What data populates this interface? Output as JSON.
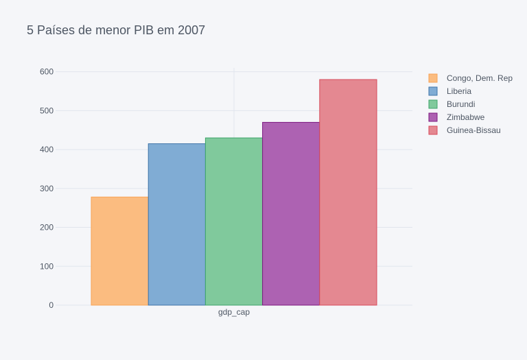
{
  "chart_data": {
    "type": "bar",
    "title": "5 Países de menor PIB em 2007",
    "categories": [
      "gdp_cap"
    ],
    "xlabel": "",
    "ylabel": "",
    "ylim": [
      0,
      610
    ],
    "yticks": [
      0,
      100,
      200,
      300,
      400,
      500,
      600
    ],
    "grid": true,
    "legend_position": "top-right",
    "series": [
      {
        "name": "Congo, Dem. Rep",
        "values": [
          278
        ],
        "color": "#fbbc80",
        "edge": "#f7a356"
      },
      {
        "name": "Liberia",
        "values": [
          415
        ],
        "color": "#80acd4",
        "edge": "#3f74a8"
      },
      {
        "name": "Burundi",
        "values": [
          430
        ],
        "color": "#80c99c",
        "edge": "#3ea46a"
      },
      {
        "name": "Zimbabwe",
        "values": [
          470
        ],
        "color": "#ad62b2",
        "edge": "#7d1a80"
      },
      {
        "name": "Guinea-Bissau",
        "values": [
          580
        ],
        "color": "#e48891",
        "edge": "#d64a5a"
      }
    ]
  }
}
